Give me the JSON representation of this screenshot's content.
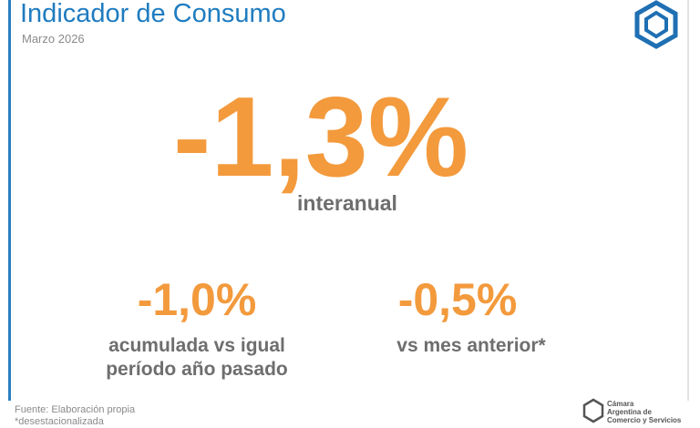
{
  "header": {
    "title": "Indicador de Consumo",
    "subtitle": "Marzo 2026"
  },
  "main": {
    "value": "-1,3%",
    "label": "interanual"
  },
  "secondary": [
    {
      "value": "-1,0%",
      "label_lines": [
        "acumulada vs igual",
        "período año pasado"
      ]
    },
    {
      "value": "-0,5%",
      "label_lines": [
        "vs mes anterior*"
      ]
    }
  ],
  "footer": {
    "source": "Fuente: Elaboración propia",
    "note": "*desestacionalizada"
  },
  "logo": {
    "lines": [
      "Cámara",
      "Argentina de",
      "Comercio y Servicios"
    ]
  }
}
